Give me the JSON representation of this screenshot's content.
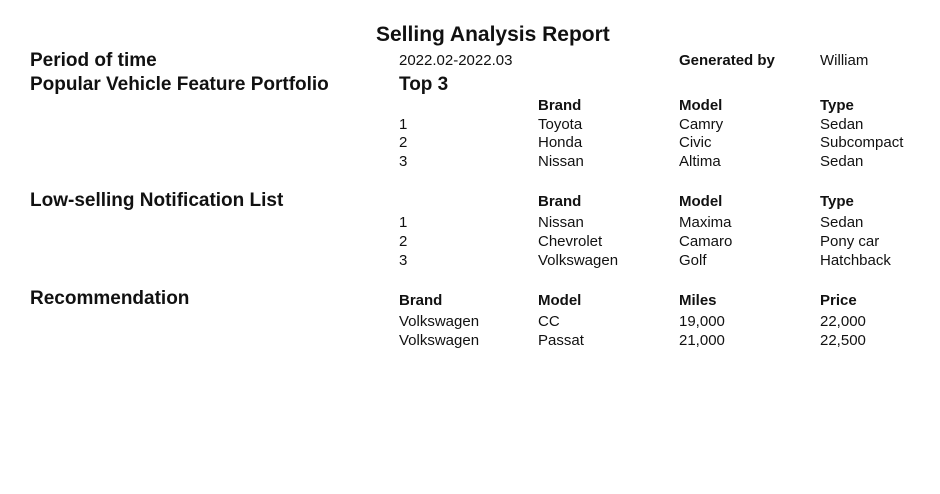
{
  "report": {
    "title": "Selling Analysis Report"
  },
  "period": {
    "label": "Period of time",
    "value": "2022.02-2022.03",
    "generated_label": "Generated by",
    "generated_value": "William"
  },
  "popular": {
    "label": "Popular Vehicle Feature Portfolio",
    "subtitle": "Top 3",
    "headers": [
      "Brand",
      "Model",
      "Type"
    ],
    "rows": [
      {
        "rank": "1",
        "brand": "Toyota",
        "model": "Camry",
        "type": "Sedan"
      },
      {
        "rank": "2",
        "brand": "Honda",
        "model": "Civic",
        "type": "Subcompact"
      },
      {
        "rank": "3",
        "brand": "Nissan",
        "model": "Altima",
        "type": "Sedan"
      }
    ]
  },
  "low_selling": {
    "label": "Low-selling Notification List",
    "headers": [
      "Brand",
      "Model",
      "Type"
    ],
    "rows": [
      {
        "rank": "1",
        "brand": "Nissan",
        "model": "Maxima",
        "type": "Sedan"
      },
      {
        "rank": "2",
        "brand": "Chevrolet",
        "model": "Camaro",
        "type": "Pony car"
      },
      {
        "rank": "3",
        "brand": "Volkswagen",
        "model": "Golf",
        "type": "Hatchback"
      }
    ]
  },
  "recommendation": {
    "label": "Recommendation",
    "headers": [
      "Brand",
      "Model",
      "Miles",
      "Price"
    ],
    "rows": [
      {
        "brand": "Volkswagen",
        "model": "CC",
        "miles": "19,000",
        "price": "22,000"
      },
      {
        "brand": "Volkswagen",
        "model": "Passat",
        "miles": "21,000",
        "price": "22,500"
      }
    ]
  }
}
